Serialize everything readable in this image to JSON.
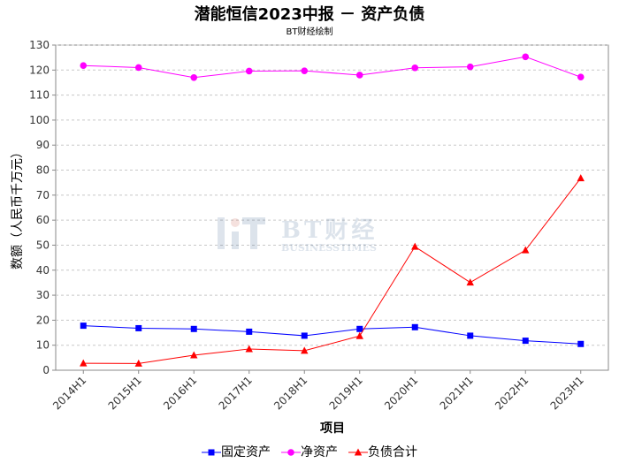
{
  "chart_data": {
    "type": "line",
    "title": "潜能恒信2023中报 － 资产负债",
    "subtitle": "BT财经绘制",
    "xlabel": "项目",
    "ylabel": "数额（人民币千万元）",
    "categories": [
      "2014H1",
      "2015H1",
      "2016H1",
      "2017H1",
      "2018H1",
      "2019H1",
      "2020H1",
      "2021H1",
      "2022H1",
      "2023H1"
    ],
    "ylim": [
      0,
      130
    ],
    "yticks": [
      0,
      10,
      20,
      30,
      40,
      50,
      60,
      70,
      80,
      90,
      100,
      110,
      120,
      130
    ],
    "grid": true,
    "legend_position": "bottom",
    "series": [
      {
        "name": "固定资产",
        "color": "#0000ff",
        "marker": "square",
        "values": [
          17.8,
          16.8,
          16.5,
          15.4,
          13.8,
          16.5,
          17.2,
          13.8,
          11.8,
          10.5
        ]
      },
      {
        "name": "净资产",
        "color": "#ff00ff",
        "marker": "circle",
        "values": [
          121.8,
          121.0,
          117.0,
          119.6,
          119.7,
          118.0,
          120.9,
          121.3,
          125.3,
          117.2
        ]
      },
      {
        "name": "负债合计",
        "color": "#ff0000",
        "marker": "triangle",
        "values": [
          2.8,
          2.7,
          6.0,
          8.5,
          7.8,
          13.7,
          49.4,
          35.1,
          48.0,
          76.8
        ]
      }
    ]
  },
  "watermark": {
    "brand": "BT财经",
    "sub": "BUSINESSTIMES"
  }
}
